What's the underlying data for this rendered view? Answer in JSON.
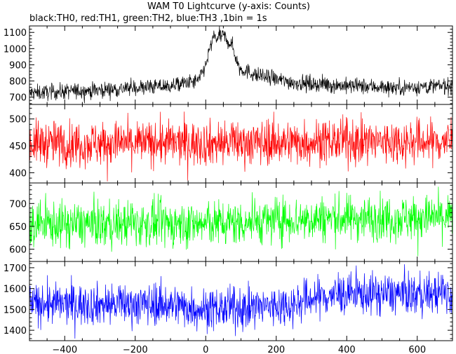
{
  "chart_data": {
    "type": "line",
    "title": "WAM T0 Lightcurve (y-axis: Counts)",
    "subtitle": "black:TH0, red:TH1, green:TH2, blue:TH3 ,1bin = 1s",
    "xlabel": "",
    "ylabel": "",
    "x_range": [
      -500,
      700
    ],
    "x_ticks": [
      -400,
      -200,
      0,
      200,
      400,
      600
    ],
    "x_tick_labels": [
      "−400",
      "−200",
      "0",
      "200",
      "400",
      "600"
    ],
    "series": [
      {
        "color": "#000000",
        "ylim": [
          655,
          1140
        ],
        "y_ticks": [
          700,
          800,
          900,
          1000,
          1100
        ],
        "y_tick_labels": [
          "700",
          "800",
          "900",
          "1000",
          "1100"
        ],
        "noise": 25,
        "profile": [
          [
            -500,
            725
          ],
          [
            -300,
            745
          ],
          [
            -100,
            770
          ],
          [
            -20,
            800
          ],
          [
            0,
            900
          ],
          [
            20,
            1060
          ],
          [
            50,
            1080
          ],
          [
            75,
            1020
          ],
          [
            95,
            880
          ],
          [
            150,
            830
          ],
          [
            250,
            790
          ],
          [
            400,
            770
          ],
          [
            550,
            760
          ],
          [
            700,
            770
          ]
        ]
      },
      {
        "color": "#ff0000",
        "ylim": [
          381,
          527
        ],
        "y_ticks": [
          400,
          450,
          500
        ],
        "y_tick_labels": [
          "400",
          "450",
          "500"
        ],
        "noise": 21,
        "profile": [
          [
            -500,
            455
          ],
          [
            0,
            455
          ],
          [
            300,
            458
          ],
          [
            700,
            458
          ]
        ]
      },
      {
        "color": "#00ff00",
        "ylim": [
          573,
          745
        ],
        "y_ticks": [
          600,
          650,
          700
        ],
        "y_tick_labels": [
          "600",
          "650",
          "700"
        ],
        "noise": 25,
        "profile": [
          [
            -500,
            655
          ],
          [
            0,
            655
          ],
          [
            300,
            667
          ],
          [
            700,
            670
          ]
        ]
      },
      {
        "color": "#0000ff",
        "ylim": [
          1350,
          1730
        ],
        "y_ticks": [
          1400,
          1500,
          1600,
          1700
        ],
        "y_tick_labels": [
          "1400",
          "1500",
          "1600",
          "1700"
        ],
        "noise": 50,
        "profile": [
          [
            -500,
            1525
          ],
          [
            -100,
            1525
          ],
          [
            0,
            1500
          ],
          [
            100,
            1505
          ],
          [
            250,
            1525
          ],
          [
            300,
            1555
          ],
          [
            400,
            1575
          ],
          [
            700,
            1575
          ]
        ]
      }
    ]
  }
}
